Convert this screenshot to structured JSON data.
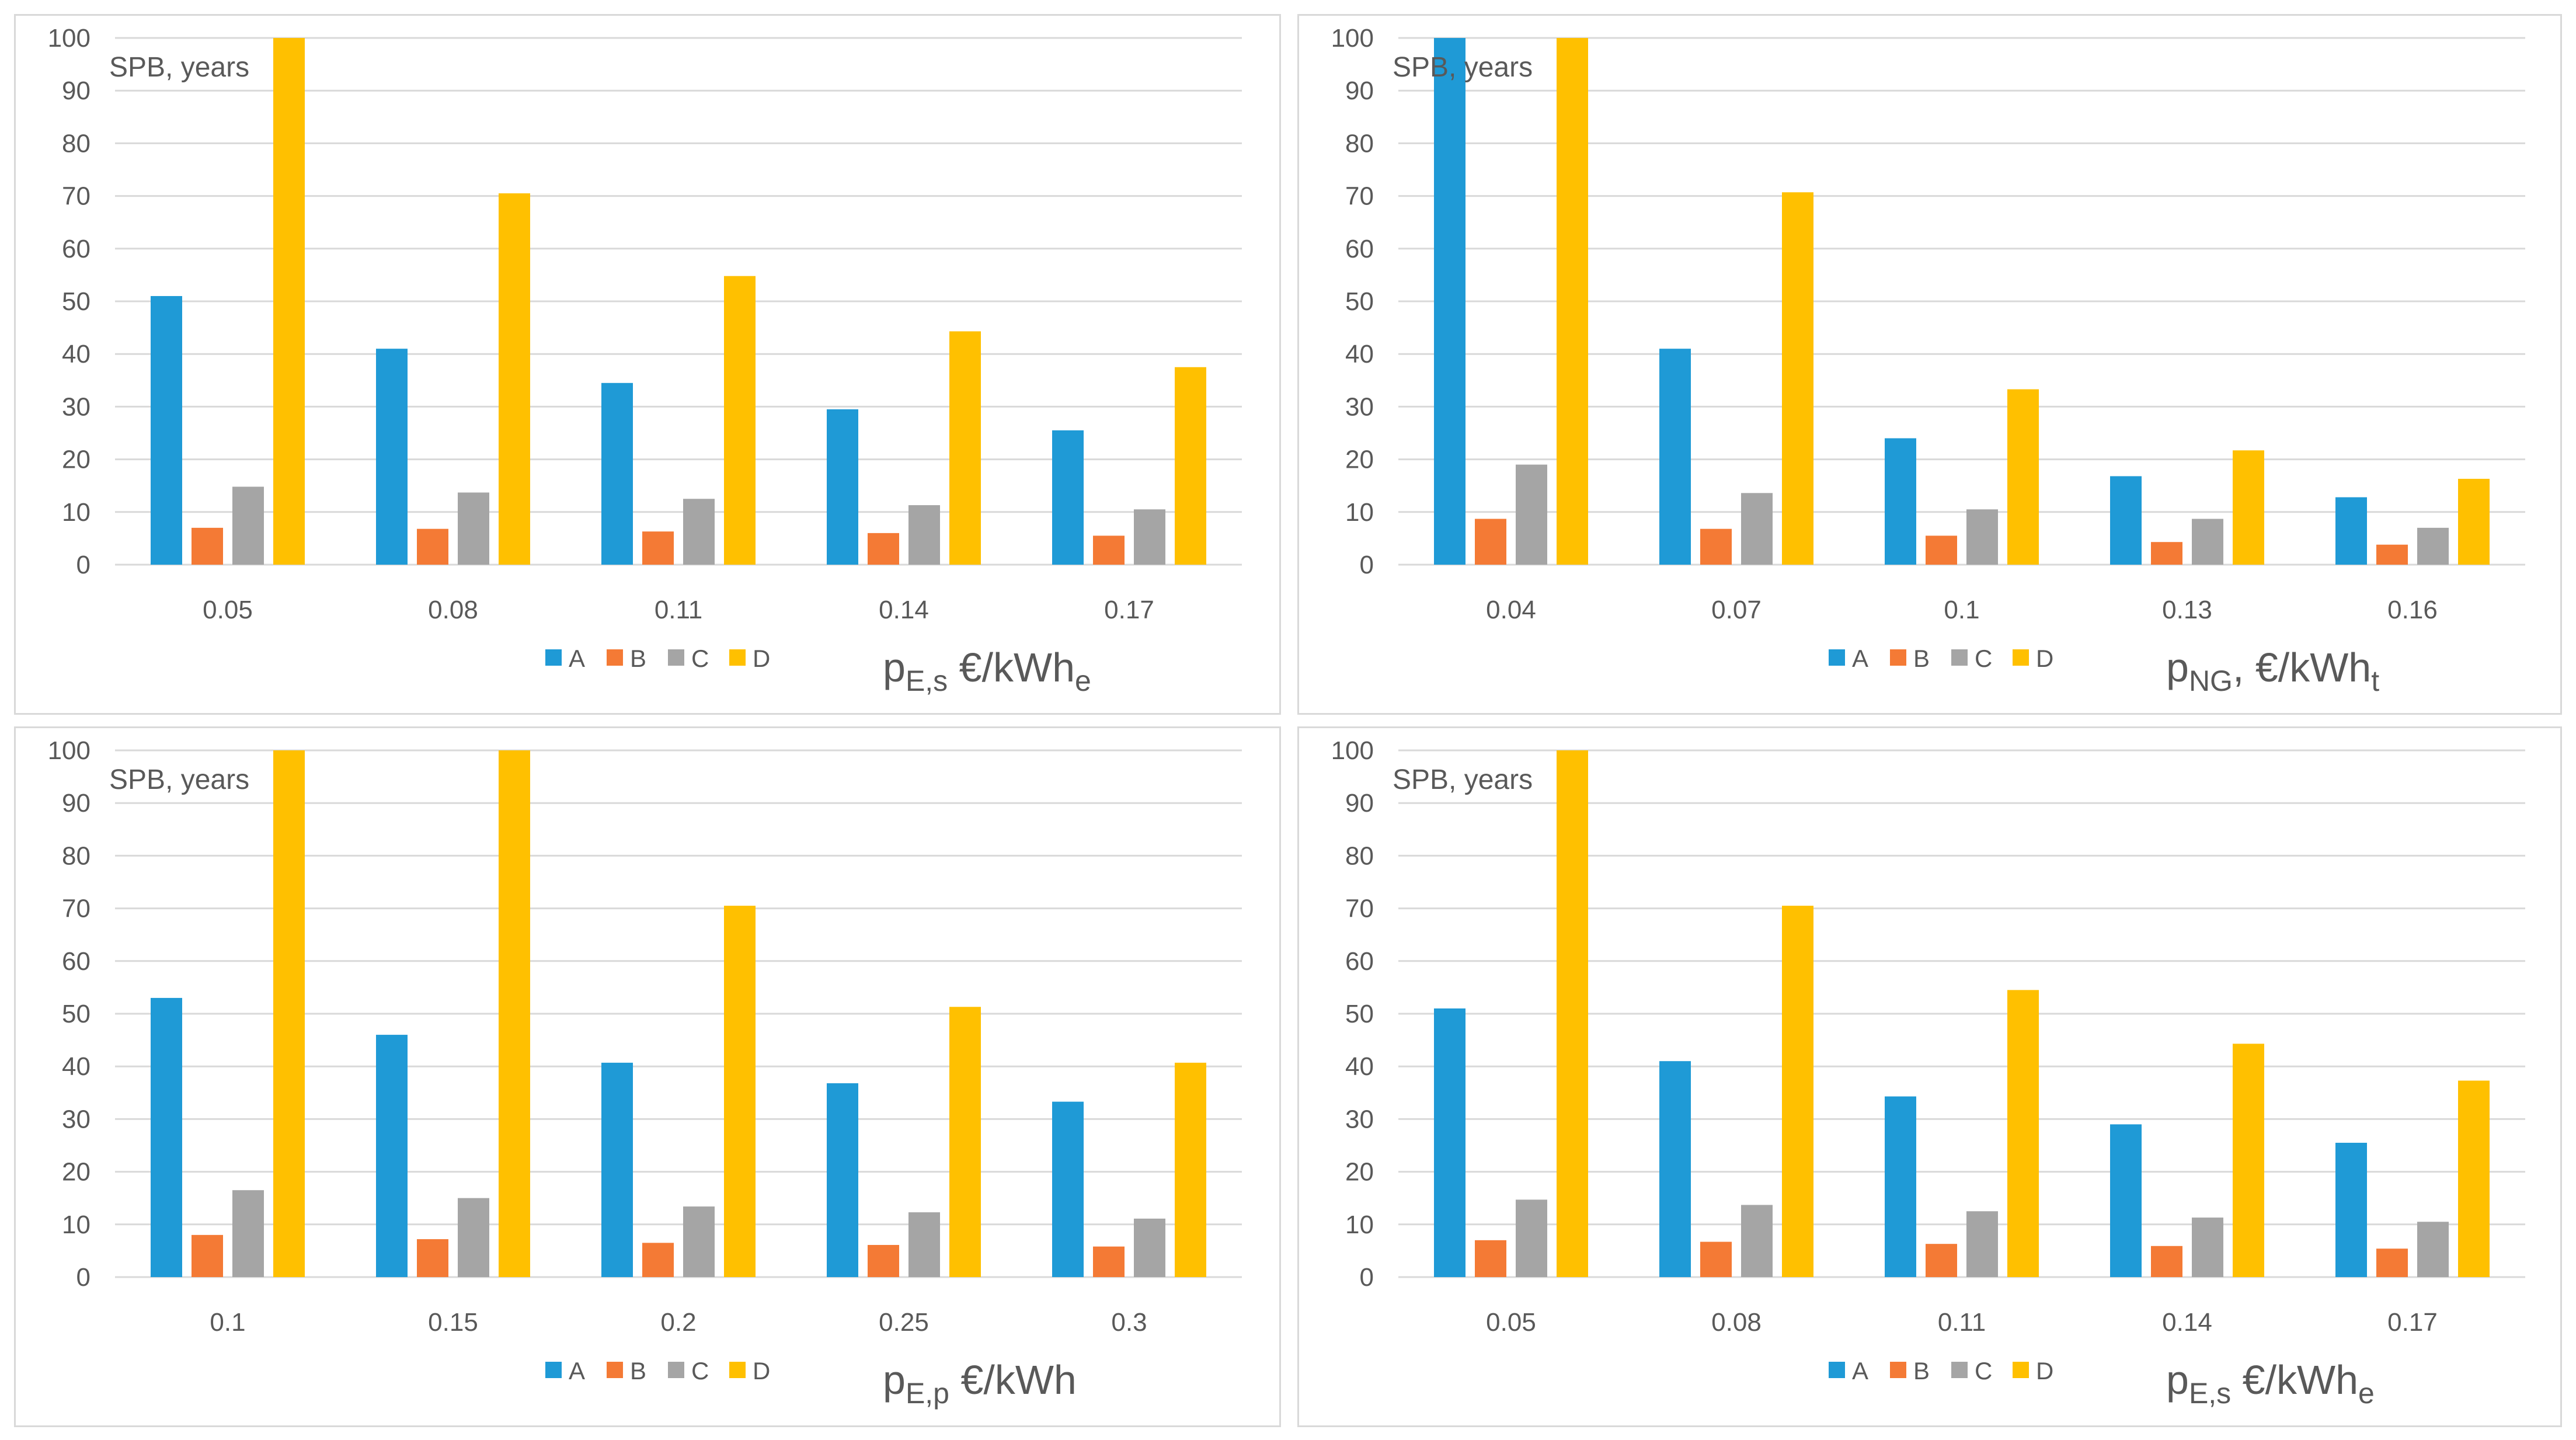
{
  "colors": {
    "A": "#1f9ad6",
    "B": "#f47a35",
    "C": "#a5a5a5",
    "D": "#ffc000"
  },
  "chart_data": [
    {
      "type": "bar",
      "ylabel": "SPB, years",
      "ylim": [
        0,
        100
      ],
      "yticks": [
        0,
        10,
        20,
        30,
        40,
        50,
        60,
        70,
        80,
        90,
        100
      ],
      "categories": [
        "0.05",
        "0.08",
        "0.11",
        "0.14",
        "0.17"
      ],
      "xlabel": {
        "base": "p",
        "sub": "E,s",
        "unit": " €/kWh",
        "unit_sub": "e"
      },
      "legend": [
        "A",
        "B",
        "C",
        "D"
      ],
      "series": [
        {
          "name": "A",
          "values": [
            51,
            41,
            34.5,
            29.5,
            25.5
          ]
        },
        {
          "name": "B",
          "values": [
            7,
            6.8,
            6.3,
            6,
            5.5
          ]
        },
        {
          "name": "C",
          "values": [
            14.8,
            13.7,
            12.5,
            11.3,
            10.5
          ]
        },
        {
          "name": "D",
          "values": [
            100,
            70.5,
            54.8,
            44.3,
            37.5
          ]
        }
      ]
    },
    {
      "type": "bar",
      "ylabel": "SPB, years",
      "ylim": [
        0,
        100
      ],
      "yticks": [
        0,
        10,
        20,
        30,
        40,
        50,
        60,
        70,
        80,
        90,
        100
      ],
      "categories": [
        "0.04",
        "0.07",
        "0.1",
        "0.13",
        "0.16"
      ],
      "xlabel": {
        "base": "p",
        "sub": "NG",
        "unit": ", €/kWh",
        "unit_sub": "t"
      },
      "legend": [
        "A",
        "B",
        "C",
        "D"
      ],
      "series": [
        {
          "name": "A",
          "values": [
            100,
            41,
            24,
            16.8,
            12.8
          ]
        },
        {
          "name": "B",
          "values": [
            8.7,
            6.8,
            5.5,
            4.3,
            3.8
          ]
        },
        {
          "name": "C",
          "values": [
            19,
            13.6,
            10.5,
            8.7,
            7
          ]
        },
        {
          "name": "D",
          "values": [
            100,
            70.7,
            33.3,
            21.7,
            16.3
          ]
        }
      ]
    },
    {
      "type": "bar",
      "ylabel": "SPB, years",
      "ylim": [
        0,
        100
      ],
      "yticks": [
        0,
        10,
        20,
        30,
        40,
        50,
        60,
        70,
        80,
        90,
        100
      ],
      "categories": [
        "0.1",
        "0.15",
        "0.2",
        "0.25",
        "0.3"
      ],
      "xlabel": {
        "base": "p",
        "sub": "E,p",
        "unit": " €/kWh",
        "unit_sub": ""
      },
      "legend": [
        "A",
        "B",
        "C",
        "D"
      ],
      "series": [
        {
          "name": "A",
          "values": [
            53,
            46,
            40.7,
            36.8,
            33.3
          ]
        },
        {
          "name": "B",
          "values": [
            8,
            7.2,
            6.5,
            6.1,
            5.8
          ]
        },
        {
          "name": "C",
          "values": [
            16.5,
            15,
            13.4,
            12.3,
            11.1
          ]
        },
        {
          "name": "D",
          "values": [
            100,
            100,
            70.5,
            51.3,
            40.7
          ]
        }
      ]
    },
    {
      "type": "bar",
      "ylabel": "SPB, years",
      "ylim": [
        0,
        100
      ],
      "yticks": [
        0,
        10,
        20,
        30,
        40,
        50,
        60,
        70,
        80,
        90,
        100
      ],
      "categories": [
        "0.05",
        "0.08",
        "0.11",
        "0.14",
        "0.17"
      ],
      "xlabel": {
        "base": "p",
        "sub": "E,s",
        "unit": " €/kWh",
        "unit_sub": "e"
      },
      "legend": [
        "A",
        "B",
        "C",
        "D"
      ],
      "series": [
        {
          "name": "A",
          "values": [
            51,
            41,
            34.3,
            29,
            25.5
          ]
        },
        {
          "name": "B",
          "values": [
            7,
            6.7,
            6.3,
            5.9,
            5.4
          ]
        },
        {
          "name": "C",
          "values": [
            14.7,
            13.7,
            12.5,
            11.3,
            10.5
          ]
        },
        {
          "name": "D",
          "values": [
            100,
            70.5,
            54.5,
            44.3,
            37.3
          ]
        }
      ]
    }
  ]
}
